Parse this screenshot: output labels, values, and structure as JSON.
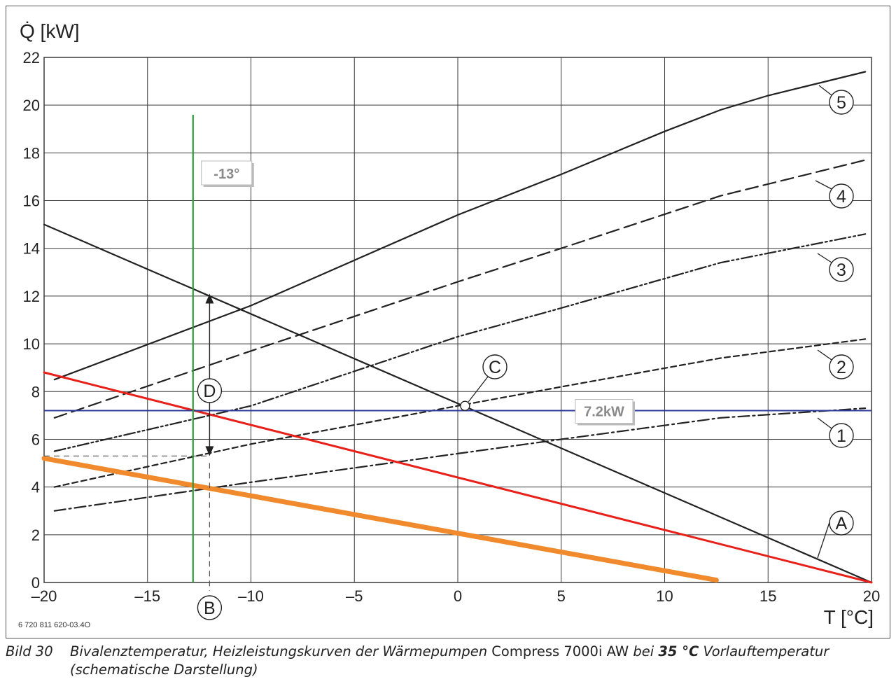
{
  "chart_data": {
    "type": "line",
    "ylabel": "Q̇ [kW]",
    "xlabel": "T [°C]",
    "xlim": [
      -20,
      20
    ],
    "ylim": [
      0,
      22
    ],
    "xticks": [
      -20,
      -15,
      -10,
      -5,
      0,
      5,
      10,
      15,
      20
    ],
    "xtick_labels": [
      "–20",
      "–15",
      "–10",
      "–5",
      "0",
      "5",
      "10",
      "15",
      "20"
    ],
    "yticks": [
      0,
      2,
      4,
      6,
      8,
      10,
      12,
      14,
      16,
      18,
      20,
      22
    ],
    "ytick_labels": [
      "0",
      "2",
      "4",
      "6",
      "8",
      "10",
      "12",
      "14",
      "16",
      "18",
      "20",
      "22"
    ],
    "grid": true,
    "series": [
      {
        "name": "5",
        "style": "solid",
        "color": "#222222",
        "points": [
          [
            -19.5,
            8.5
          ],
          [
            -10,
            11.6
          ],
          [
            0,
            15.4
          ],
          [
            5,
            17.1
          ],
          [
            10,
            18.9
          ],
          [
            12.7,
            19.8
          ],
          [
            15,
            20.4
          ],
          [
            19.7,
            21.4
          ]
        ]
      },
      {
        "name": "4",
        "style": "dash",
        "color": "#222222",
        "points": [
          [
            -19.5,
            6.9
          ],
          [
            -10,
            9.7
          ],
          [
            0,
            12.6
          ],
          [
            5,
            14.0
          ],
          [
            12.7,
            16.2
          ],
          [
            19.7,
            17.7
          ]
        ]
      },
      {
        "name": "3",
        "style": "dashdotdot",
        "color": "#222222",
        "points": [
          [
            -19.5,
            5.5
          ],
          [
            -10,
            7.4
          ],
          [
            0,
            10.3
          ],
          [
            5,
            11.5
          ],
          [
            12.7,
            13.4
          ],
          [
            19.7,
            14.6
          ]
        ]
      },
      {
        "name": "2",
        "style": "shortdash",
        "color": "#222222",
        "points": [
          [
            -19.5,
            4.0
          ],
          [
            -10,
            5.8
          ],
          [
            0,
            7.4
          ],
          [
            5,
            8.2
          ],
          [
            12.7,
            9.4
          ],
          [
            19.7,
            10.2
          ]
        ]
      },
      {
        "name": "1",
        "style": "dashdot",
        "color": "#222222",
        "points": [
          [
            -19.5,
            3.0
          ],
          [
            -10,
            4.2
          ],
          [
            0,
            5.4
          ],
          [
            5,
            6.0
          ],
          [
            12.7,
            6.9
          ],
          [
            19.7,
            7.3
          ]
        ]
      },
      {
        "name": "A",
        "style": "solid",
        "color": "#222222",
        "points": [
          [
            -20,
            15.0
          ],
          [
            20,
            0
          ]
        ]
      },
      {
        "name": "",
        "style": "solid",
        "color": "#e8201a",
        "points": [
          [
            -20,
            8.8
          ],
          [
            20,
            0
          ]
        ]
      },
      {
        "name": "",
        "style": "thick",
        "color": "#f08a2c",
        "points": [
          [
            -20,
            5.2
          ],
          [
            12.5,
            0.1
          ]
        ]
      }
    ],
    "vertical_marker": {
      "x": -12.8,
      "y_top": 19.6,
      "color": "#2e9a3a",
      "label": "-13°"
    },
    "horizontal_marker": {
      "y": 7.2,
      "color": "#2c3a9a",
      "label": "7.2kW"
    },
    "point_C": {
      "x": 0.35,
      "y": 7.4,
      "label": "C"
    },
    "marker_D": {
      "x": -12,
      "y_from": 5.3,
      "y_to": 12.1,
      "label": "D"
    },
    "marker_B": {
      "x": -12,
      "label": "B"
    },
    "dashed_reference": {
      "y": 5.3,
      "x_from": -20,
      "x_to": -12
    }
  },
  "drawing_number": "6 720 811 620-03.4O",
  "caption": {
    "number": "Bild 30",
    "text_part1": "Bivalenztemperatur, Heizleistungskurven der Wärmepumpen",
    "product": " Compress 7000i AW ",
    "text_part2": "bei ",
    "temp_bold": "35 °C",
    "text_part3": " Vorlauftemperatur",
    "line2": "(schematische Darstellung)"
  }
}
